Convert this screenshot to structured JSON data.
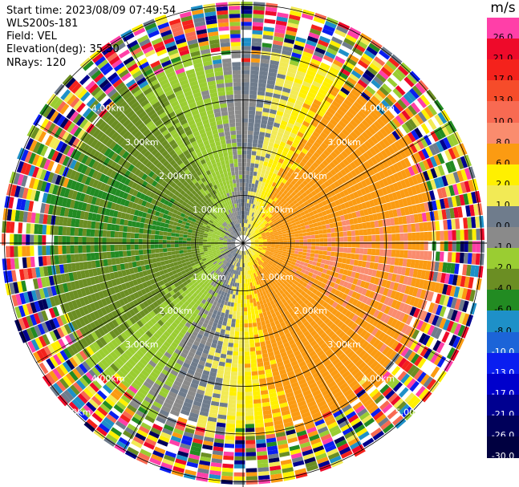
{
  "header": {
    "start_time": "Start time: 2023/08/09 07:49:54",
    "site": "WLS200s-181",
    "field": "Field: VEL",
    "elevation": "Elevation(deg): 35.30",
    "nrays": "NRays: 120"
  },
  "colorbar": {
    "unit": "m/s",
    "levels": [
      {
        "label": "26.0",
        "color": "#ff3fa8"
      },
      {
        "label": "21.0",
        "color": "#ee0a2a"
      },
      {
        "label": "17.0",
        "color": "#f4221c"
      },
      {
        "label": "13.0",
        "color": "#f64c2a"
      },
      {
        "label": "10.0",
        "color": "#f86a52"
      },
      {
        "label": "8.0",
        "color": "#fa8c6e"
      },
      {
        "label": "6.0",
        "color": "#fb9b12"
      },
      {
        "label": "2.0",
        "color": "#fff000"
      },
      {
        "label": "1.0",
        "color": "#f2ea55"
      },
      {
        "label": "0.0",
        "color": "#6f7c8c"
      },
      {
        "label": "-1.0",
        "color": "#8a8a8a"
      },
      {
        "label": "-2.0",
        "color": "#9acd32"
      },
      {
        "label": "-4.0",
        "color": "#6b8e23"
      },
      {
        "label": "-6.0",
        "color": "#228b22"
      },
      {
        "label": "-8.0",
        "color": "#1e90c8"
      },
      {
        "label": "-10.0",
        "color": "#1c64d8"
      },
      {
        "label": "-13.0",
        "color": "#0a1ef0"
      },
      {
        "label": "-17.0",
        "color": "#0000cc"
      },
      {
        "label": "-21.0",
        "color": "#000090"
      },
      {
        "label": "-26.0",
        "color": "#00005a"
      },
      {
        "label": "-30.0",
        "color": "#000040"
      }
    ]
  },
  "range_rings": {
    "labels": [
      "1.00km",
      "2.00km",
      "3.00km",
      "4.00km",
      "5.00km"
    ]
  }
}
